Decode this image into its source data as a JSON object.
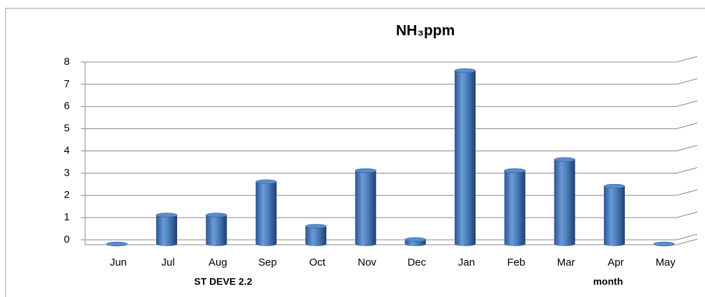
{
  "chart_data": {
    "type": "bar",
    "title": "NH₃ppm",
    "categories": [
      "Jun",
      "Jul",
      "Aug",
      "Sep",
      "Oct",
      "Nov",
      "Dec",
      "Jan",
      "Feb",
      "Mar",
      "Apr",
      "May"
    ],
    "values": [
      0,
      1.3,
      1.3,
      2.8,
      0.8,
      3.3,
      0.2,
      7.8,
      3.3,
      3.8,
      2.6,
      0
    ],
    "color": "#4a7ebb",
    "ylim": [
      0,
      8
    ],
    "yticks": [
      0,
      1,
      2,
      3,
      4,
      5,
      6,
      7,
      8
    ],
    "grid": true,
    "xlabel": "month",
    "annotations": [
      "ST DEVE  2.2"
    ]
  }
}
